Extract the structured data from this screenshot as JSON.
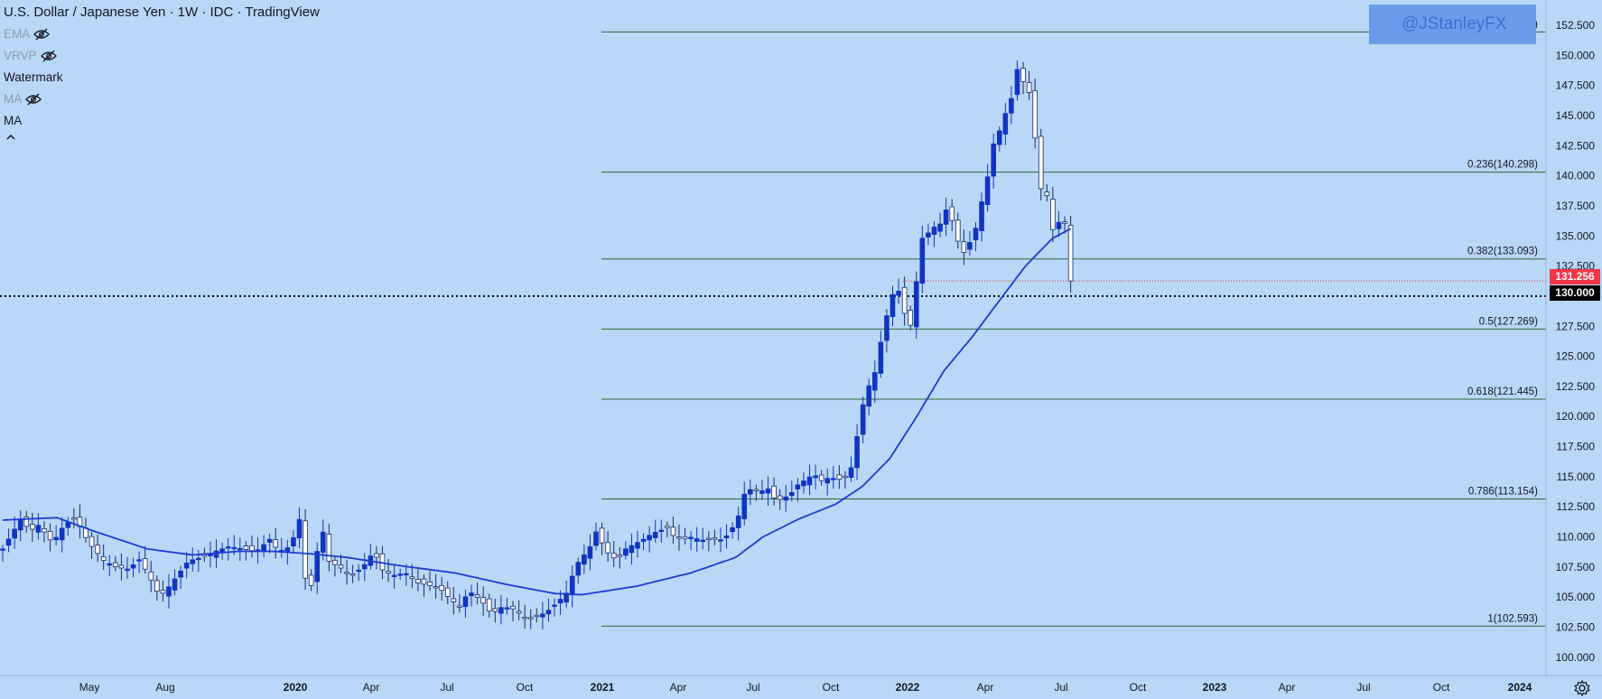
{
  "header": {
    "title": "U.S. Dollar / Japanese Yen · 1W · IDC · TradingView",
    "legend_items": [
      {
        "label": "EMA",
        "hidden": true
      },
      {
        "label": "VRVP",
        "hidden": true
      },
      {
        "label": "Watermark",
        "hidden": false
      },
      {
        "label": "MA",
        "hidden": true
      },
      {
        "label": "MA",
        "hidden": false
      }
    ],
    "collapse_icon": "chevron-up-icon"
  },
  "watermark_text": "@JStanleyFX",
  "price_tags": {
    "last_price": "131.256",
    "horizontal_line": "130.000"
  },
  "colors": {
    "background": "#b9d7f7",
    "ma_line": "#1a3ecf",
    "candle_up_body": "#1035c0",
    "candle_down_body": "#ffffff",
    "candle_down_border": "#1a2a66",
    "fib_line": "#2b6b3a",
    "last_price_tag": "#f23645",
    "hline_tag": "#000000"
  },
  "chart_data": {
    "type": "candlestick",
    "y_axis": {
      "range": [
        97.8,
        155.0
      ],
      "ticks": [
        "100.000",
        "102.500",
        "105.000",
        "107.500",
        "110.000",
        "112.500",
        "115.000",
        "117.500",
        "120.000",
        "122.500",
        "125.000",
        "127.500",
        "130.000",
        "132.500",
        "135.000",
        "137.500",
        "140.000",
        "142.500",
        "145.000",
        "147.500",
        "150.000",
        "152.500"
      ]
    },
    "x_axis": {
      "labels": [
        "May",
        "Aug",
        "2020",
        "Apr",
        "Jul",
        "Oct",
        "2021",
        "Apr",
        "Jul",
        "Oct",
        "2022",
        "Apr",
        "Jul",
        "Oct",
        "2023",
        "Apr",
        "Jul",
        "Oct",
        "2024"
      ],
      "bold_labels": [
        "2020",
        "2021",
        "2022",
        "2023",
        "2024"
      ]
    },
    "fib_levels": [
      {
        "ratio": 0,
        "label": "0(151.945)",
        "price": 151.945
      },
      {
        "ratio": 0.236,
        "label": "0.236(140.298)",
        "price": 140.298
      },
      {
        "ratio": 0.382,
        "label": "0.382(133.093)",
        "price": 133.093
      },
      {
        "ratio": 0.5,
        "label": "0.5(127.269)",
        "price": 127.269
      },
      {
        "ratio": 0.618,
        "label": "0.618(121.445)",
        "price": 121.445
      },
      {
        "ratio": 0.786,
        "label": "0.786(113.154)",
        "price": 113.154
      },
      {
        "ratio": 1,
        "label": "1(102.593)",
        "price": 102.593
      }
    ],
    "horizontal_line": 130.0,
    "last_price": 131.256,
    "close_path": [
      [
        0,
        109.0
      ],
      [
        12,
        110.5
      ],
      [
        20,
        111.5
      ],
      [
        30,
        110.5
      ],
      [
        40,
        111.0
      ],
      [
        55,
        109.5
      ],
      [
        68,
        111.0
      ],
      [
        80,
        111.6
      ],
      [
        95,
        109.5
      ],
      [
        112,
        108.0
      ],
      [
        125,
        107.5
      ],
      [
        140,
        107.3
      ],
      [
        150,
        108.2
      ],
      [
        160,
        107.0
      ],
      [
        170,
        105.5
      ],
      [
        178,
        105.3
      ],
      [
        190,
        106.5
      ],
      [
        205,
        108.0
      ],
      [
        220,
        108.3
      ],
      [
        235,
        108.8
      ],
      [
        250,
        109.2
      ],
      [
        265,
        109.0
      ],
      [
        280,
        108.8
      ],
      [
        295,
        109.8
      ],
      [
        305,
        108.8
      ],
      [
        318,
        109.2
      ],
      [
        328,
        111.5
      ],
      [
        337,
        104.5
      ],
      [
        345,
        107.5
      ],
      [
        352,
        111.2
      ],
      [
        360,
        108.0
      ],
      [
        372,
        107.5
      ],
      [
        385,
        106.8
      ],
      [
        398,
        107.5
      ],
      [
        410,
        108.8
      ],
      [
        420,
        107.2
      ],
      [
        432,
        106.8
      ],
      [
        445,
        107.0
      ],
      [
        458,
        106.2
      ],
      [
        470,
        106.0
      ],
      [
        482,
        105.8
      ],
      [
        495,
        104.8
      ],
      [
        505,
        104.2
      ],
      [
        515,
        105.5
      ],
      [
        528,
        104.8
      ],
      [
        540,
        103.6
      ],
      [
        552,
        104.2
      ],
      [
        565,
        104.0
      ],
      [
        578,
        103.2
      ],
      [
        590,
        103.4
      ],
      [
        600,
        103.7
      ],
      [
        612,
        104.5
      ],
      [
        625,
        105.5
      ],
      [
        632,
        107.5
      ],
      [
        640,
        108.3
      ],
      [
        648,
        109.0
      ],
      [
        656,
        110.5
      ],
      [
        664,
        109.2
      ],
      [
        672,
        108.3
      ],
      [
        680,
        108.2
      ],
      [
        688,
        109.0
      ],
      [
        698,
        109.4
      ],
      [
        708,
        109.8
      ],
      [
        718,
        110.3
      ],
      [
        726,
        110.5
      ],
      [
        734,
        110.8
      ],
      [
        742,
        110.0
      ],
      [
        752,
        109.8
      ],
      [
        762,
        110.0
      ],
      [
        772,
        109.7
      ],
      [
        782,
        109.9
      ],
      [
        792,
        109.7
      ],
      [
        802,
        110.2
      ],
      [
        812,
        111.5
      ],
      [
        820,
        113.7
      ],
      [
        828,
        114.0
      ],
      [
        838,
        113.8
      ],
      [
        846,
        114.0
      ],
      [
        854,
        113.0
      ],
      [
        862,
        113.2
      ],
      [
        870,
        113.5
      ],
      [
        878,
        114.3
      ],
      [
        886,
        114.7
      ],
      [
        896,
        115.2
      ],
      [
        906,
        114.6
      ],
      [
        914,
        115.0
      ],
      [
        922,
        114.7
      ],
      [
        930,
        115.0
      ],
      [
        936,
        115.2
      ],
      [
        942,
        117.5
      ],
      [
        948,
        120.0
      ],
      [
        954,
        122.3
      ],
      [
        960,
        122.8
      ],
      [
        966,
        124.2
      ],
      [
        972,
        127.0
      ],
      [
        980,
        129.3
      ],
      [
        986,
        130.8
      ],
      [
        992,
        130.2
      ],
      [
        998,
        128.0
      ],
      [
        1004,
        127.5
      ],
      [
        1010,
        131.5
      ],
      [
        1016,
        134.8
      ],
      [
        1022,
        135.2
      ],
      [
        1030,
        135.8
      ],
      [
        1036,
        136.0
      ],
      [
        1042,
        137.2
      ],
      [
        1048,
        136.5
      ],
      [
        1054,
        135.0
      ],
      [
        1060,
        133.2
      ],
      [
        1066,
        134.5
      ],
      [
        1072,
        134.4
      ],
      [
        1078,
        136.8
      ],
      [
        1084,
        138.5
      ],
      [
        1090,
        140.5
      ],
      [
        1096,
        143.2
      ],
      [
        1102,
        143.8
      ],
      [
        1108,
        145.2
      ],
      [
        1114,
        146.2
      ],
      [
        1120,
        149.0
      ],
      [
        1126,
        148.0
      ],
      [
        1132,
        147.3
      ],
      [
        1138,
        146.2
      ],
      [
        1144,
        139.3
      ],
      [
        1150,
        138.6
      ],
      [
        1156,
        138.2
      ],
      [
        1162,
        134.5
      ],
      [
        1168,
        136.5
      ],
      [
        1174,
        136.0
      ],
      [
        1180,
        131.26
      ]
    ],
    "ma_path": [
      [
        0,
        111.4
      ],
      [
        60,
        111.6
      ],
      [
        100,
        110.5
      ],
      [
        160,
        109.0
      ],
      [
        210,
        108.5
      ],
      [
        260,
        108.8
      ],
      [
        300,
        108.8
      ],
      [
        340,
        108.6
      ],
      [
        380,
        108.3
      ],
      [
        440,
        107.6
      ],
      [
        500,
        107.0
      ],
      [
        560,
        106.0
      ],
      [
        610,
        105.3
      ],
      [
        640,
        105.2
      ],
      [
        700,
        105.9
      ],
      [
        760,
        107.0
      ],
      [
        810,
        108.3
      ],
      [
        840,
        110.0
      ],
      [
        880,
        111.5
      ],
      [
        920,
        112.7
      ],
      [
        950,
        114.2
      ],
      [
        980,
        116.5
      ],
      [
        1010,
        120.0
      ],
      [
        1040,
        123.8
      ],
      [
        1070,
        126.5
      ],
      [
        1100,
        129.5
      ],
      [
        1130,
        132.5
      ],
      [
        1160,
        134.8
      ],
      [
        1180,
        135.6
      ]
    ]
  }
}
